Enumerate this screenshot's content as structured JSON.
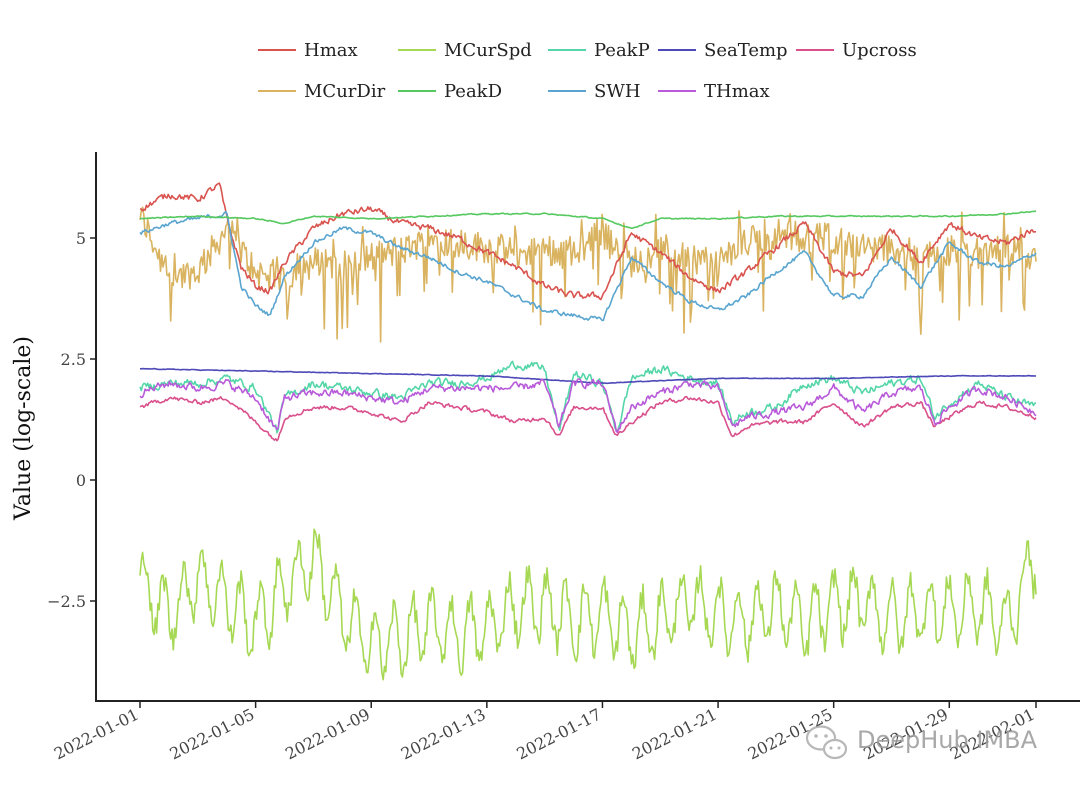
{
  "chart_data": {
    "type": "line",
    "title": "",
    "xlabel": "",
    "ylabel": "Value (log-scale)",
    "ylim": [
      -4.5,
      6.5
    ],
    "yticks": [
      -2.5,
      0,
      2.5,
      5
    ],
    "ytick_labels": [
      "−2.5",
      "0",
      "2.5",
      "5"
    ],
    "x_start": "2022-01-01",
    "x_end": "2022-02-01",
    "xticks": [
      "2022-01-01",
      "2022-01-05",
      "2022-01-09",
      "2022-01-13",
      "2022-01-17",
      "2022-01-21",
      "2022-01-25",
      "2022-01-29",
      "2022-02-01"
    ],
    "grid": false,
    "legend_position": "top",
    "series": [
      {
        "name": "Hmax",
        "color": "#d9534f",
        "anchors": [
          [
            "2022-01-01",
            5.6
          ],
          [
            "2022-01-02",
            5.9
          ],
          [
            "2022-01-03",
            5.8
          ],
          [
            "2022-01-03 18:00",
            6.1
          ],
          [
            "2022-01-04",
            5.4
          ],
          [
            "2022-01-04 12:00",
            4.4
          ],
          [
            "2022-01-05",
            4.0
          ],
          [
            "2022-01-05 12:00",
            3.9
          ],
          [
            "2022-01-06",
            4.5
          ],
          [
            "2022-01-07",
            5.2
          ],
          [
            "2022-01-08",
            5.5
          ],
          [
            "2022-01-09",
            5.6
          ],
          [
            "2022-01-10",
            5.3
          ],
          [
            "2022-01-11",
            5.2
          ],
          [
            "2022-01-12",
            5.0
          ],
          [
            "2022-01-13",
            4.7
          ],
          [
            "2022-01-14",
            4.4
          ],
          [
            "2022-01-15",
            4.0
          ],
          [
            "2022-01-16",
            3.8
          ],
          [
            "2022-01-17",
            3.8
          ],
          [
            "2022-01-18",
            5.1
          ],
          [
            "2022-01-19",
            4.7
          ],
          [
            "2022-01-20",
            4.2
          ],
          [
            "2022-01-21",
            3.9
          ],
          [
            "2022-01-22",
            4.3
          ],
          [
            "2022-01-23",
            4.8
          ],
          [
            "2022-01-24",
            5.3
          ],
          [
            "2022-01-25",
            4.3
          ],
          [
            "2022-01-26",
            4.2
          ],
          [
            "2022-01-27",
            5.2
          ],
          [
            "2022-01-28",
            4.5
          ],
          [
            "2022-01-29",
            5.3
          ],
          [
            "2022-01-30",
            5.0
          ],
          [
            "2022-01-31",
            4.9
          ],
          [
            "2022-02-01",
            5.2
          ]
        ]
      },
      {
        "name": "MCurSpd",
        "color": "#a6d854",
        "anchors": [
          [
            "2022-01-01",
            -2.1
          ],
          [
            "2022-01-02",
            -2.8
          ],
          [
            "2022-01-03",
            -2.0
          ],
          [
            "2022-01-04",
            -2.5
          ],
          [
            "2022-01-05",
            -3.0
          ],
          [
            "2022-01-06",
            -2.2
          ],
          [
            "2022-01-07",
            -1.6
          ],
          [
            "2022-01-08",
            -2.8
          ],
          [
            "2022-01-09",
            -3.4
          ],
          [
            "2022-01-10",
            -3.3
          ],
          [
            "2022-01-11",
            -3.0
          ],
          [
            "2022-01-12",
            -3.2
          ],
          [
            "2022-01-13",
            -3.1
          ],
          [
            "2022-01-14",
            -2.6
          ],
          [
            "2022-01-15",
            -2.6
          ],
          [
            "2022-01-16",
            -2.9
          ],
          [
            "2022-01-17",
            -2.8
          ],
          [
            "2022-01-18",
            -3.2
          ],
          [
            "2022-01-19",
            -2.9
          ],
          [
            "2022-01-20",
            -2.5
          ],
          [
            "2022-01-21",
            -2.8
          ],
          [
            "2022-01-22",
            -2.9
          ],
          [
            "2022-01-23",
            -2.6
          ],
          [
            "2022-01-24",
            -3.0
          ],
          [
            "2022-01-25",
            -2.6
          ],
          [
            "2022-01-26",
            -2.5
          ],
          [
            "2022-01-27",
            -2.9
          ],
          [
            "2022-01-28",
            -2.7
          ],
          [
            "2022-01-29",
            -2.7
          ],
          [
            "2022-01-30",
            -2.6
          ],
          [
            "2022-01-31",
            -3.0
          ],
          [
            "2022-02-01",
            -1.5
          ]
        ]
      },
      {
        "name": "PeakP",
        "color": "#55d6a8",
        "anchors": [
          [
            "2022-01-01",
            1.9
          ],
          [
            "2022-01-02",
            2.0
          ],
          [
            "2022-01-03",
            2.0
          ],
          [
            "2022-01-04",
            2.1
          ],
          [
            "2022-01-05",
            1.9
          ],
          [
            "2022-01-05 18:00",
            1.0
          ],
          [
            "2022-01-06",
            1.7
          ],
          [
            "2022-01-07",
            2.0
          ],
          [
            "2022-01-08",
            1.9
          ],
          [
            "2022-01-09",
            1.8
          ],
          [
            "2022-01-10",
            1.7
          ],
          [
            "2022-01-11",
            2.0
          ],
          [
            "2022-01-12",
            2.0
          ],
          [
            "2022-01-13",
            2.1
          ],
          [
            "2022-01-14",
            2.4
          ],
          [
            "2022-01-15",
            2.3
          ],
          [
            "2022-01-15 12:00",
            1.0
          ],
          [
            "2022-01-16",
            2.2
          ],
          [
            "2022-01-17",
            2.0
          ],
          [
            "2022-01-17 12:00",
            1.0
          ],
          [
            "2022-01-18",
            2.1
          ],
          [
            "2022-01-19",
            2.3
          ],
          [
            "2022-01-20",
            2.1
          ],
          [
            "2022-01-21",
            2.0
          ],
          [
            "2022-01-21 12:00",
            1.2
          ],
          [
            "2022-01-22",
            1.4
          ],
          [
            "2022-01-23",
            1.5
          ],
          [
            "2022-01-24",
            2.0
          ],
          [
            "2022-01-25",
            2.1
          ],
          [
            "2022-01-26",
            1.8
          ],
          [
            "2022-01-27",
            2.0
          ],
          [
            "2022-01-28",
            2.1
          ],
          [
            "2022-01-28 12:00",
            1.3
          ],
          [
            "2022-01-29",
            1.6
          ],
          [
            "2022-01-30",
            2.0
          ],
          [
            "2022-01-31",
            1.7
          ],
          [
            "2022-02-01",
            1.5
          ]
        ]
      },
      {
        "name": "SeaTemp",
        "color": "#4d49b8",
        "anchors": [
          [
            "2022-01-01",
            2.3
          ],
          [
            "2022-01-05",
            2.25
          ],
          [
            "2022-01-09",
            2.2
          ],
          [
            "2022-01-13",
            2.15
          ],
          [
            "2022-01-17",
            2.0
          ],
          [
            "2022-01-21",
            2.1
          ],
          [
            "2022-01-25",
            2.1
          ],
          [
            "2022-01-29",
            2.15
          ],
          [
            "2022-02-01",
            2.15
          ]
        ]
      },
      {
        "name": "Upcross",
        "color": "#d9508c",
        "anchors": [
          [
            "2022-01-01",
            1.5
          ],
          [
            "2022-01-02",
            1.7
          ],
          [
            "2022-01-03",
            1.6
          ],
          [
            "2022-01-04",
            1.7
          ],
          [
            "2022-01-05",
            1.2
          ],
          [
            "2022-01-05 18:00",
            0.8
          ],
          [
            "2022-01-06",
            1.3
          ],
          [
            "2022-01-07",
            1.5
          ],
          [
            "2022-01-08",
            1.5
          ],
          [
            "2022-01-09",
            1.4
          ],
          [
            "2022-01-10",
            1.2
          ],
          [
            "2022-01-11",
            1.6
          ],
          [
            "2022-01-12",
            1.5
          ],
          [
            "2022-01-13",
            1.4
          ],
          [
            "2022-01-14",
            1.2
          ],
          [
            "2022-01-15",
            1.3
          ],
          [
            "2022-01-15 12:00",
            0.9
          ],
          [
            "2022-01-16",
            1.5
          ],
          [
            "2022-01-17",
            1.5
          ],
          [
            "2022-01-17 12:00",
            0.9
          ],
          [
            "2022-01-18",
            1.2
          ],
          [
            "2022-01-19",
            1.6
          ],
          [
            "2022-01-20",
            1.7
          ],
          [
            "2022-01-21",
            1.6
          ],
          [
            "2022-01-21 12:00",
            0.9
          ],
          [
            "2022-01-22",
            1.1
          ],
          [
            "2022-01-23",
            1.2
          ],
          [
            "2022-01-24",
            1.2
          ],
          [
            "2022-01-25",
            1.6
          ],
          [
            "2022-01-26",
            1.1
          ],
          [
            "2022-01-27",
            1.5
          ],
          [
            "2022-01-28",
            1.6
          ],
          [
            "2022-01-28 12:00",
            1.1
          ],
          [
            "2022-01-29",
            1.3
          ],
          [
            "2022-01-30",
            1.6
          ],
          [
            "2022-01-31",
            1.5
          ],
          [
            "2022-02-01",
            1.3
          ]
        ]
      },
      {
        "name": "MCurDir",
        "color": "#d9b35f",
        "anchors": [
          [
            "2022-01-01",
            5.5
          ],
          [
            "2022-01-02",
            4.2
          ],
          [
            "2022-01-03",
            4.3
          ],
          [
            "2022-01-04",
            5.2
          ],
          [
            "2022-01-05",
            4.3
          ],
          [
            "2022-01-06",
            4.2
          ],
          [
            "2022-01-07",
            4.5
          ],
          [
            "2022-01-08",
            4.4
          ],
          [
            "2022-01-09",
            4.6
          ],
          [
            "2022-01-10",
            4.7
          ],
          [
            "2022-01-11",
            5.0
          ],
          [
            "2022-01-12",
            4.9
          ],
          [
            "2022-01-13",
            4.8
          ],
          [
            "2022-01-14",
            4.7
          ],
          [
            "2022-01-15",
            4.8
          ],
          [
            "2022-01-16",
            4.6
          ],
          [
            "2022-01-17",
            5.2
          ],
          [
            "2022-01-18",
            4.5
          ],
          [
            "2022-01-19",
            4.8
          ],
          [
            "2022-01-20",
            4.6
          ],
          [
            "2022-01-21",
            4.5
          ],
          [
            "2022-01-22",
            4.9
          ],
          [
            "2022-01-23",
            5.1
          ],
          [
            "2022-01-24",
            5.0
          ],
          [
            "2022-01-25",
            5.0
          ],
          [
            "2022-01-26",
            4.8
          ],
          [
            "2022-01-27",
            4.8
          ],
          [
            "2022-01-28",
            4.6
          ],
          [
            "2022-01-29",
            4.8
          ],
          [
            "2022-01-30",
            4.7
          ],
          [
            "2022-01-31",
            4.8
          ],
          [
            "2022-02-01",
            4.5
          ]
        ]
      },
      {
        "name": "PeakD",
        "color": "#55c95f",
        "anchors": [
          [
            "2022-01-01",
            5.4
          ],
          [
            "2022-01-03",
            5.45
          ],
          [
            "2022-01-05",
            5.4
          ],
          [
            "2022-01-06",
            5.3
          ],
          [
            "2022-01-07",
            5.45
          ],
          [
            "2022-01-09",
            5.4
          ],
          [
            "2022-01-11",
            5.45
          ],
          [
            "2022-01-13",
            5.5
          ],
          [
            "2022-01-15",
            5.5
          ],
          [
            "2022-01-17",
            5.4
          ],
          [
            "2022-01-18",
            5.2
          ],
          [
            "2022-01-19",
            5.4
          ],
          [
            "2022-01-21",
            5.4
          ],
          [
            "2022-01-23",
            5.45
          ],
          [
            "2022-01-25",
            5.45
          ],
          [
            "2022-01-27",
            5.45
          ],
          [
            "2022-01-29",
            5.45
          ],
          [
            "2022-01-31",
            5.5
          ],
          [
            "2022-02-01",
            5.55
          ]
        ]
      },
      {
        "name": "SWH",
        "color": "#5aa5cf",
        "anchors": [
          [
            "2022-01-01",
            5.1
          ],
          [
            "2022-01-02",
            5.3
          ],
          [
            "2022-01-03",
            5.4
          ],
          [
            "2022-01-04",
            5.5
          ],
          [
            "2022-01-04 12:00",
            4.0
          ],
          [
            "2022-01-05",
            3.6
          ],
          [
            "2022-01-05 12:00",
            3.4
          ],
          [
            "2022-01-06",
            4.2
          ],
          [
            "2022-01-07",
            4.9
          ],
          [
            "2022-01-08",
            5.2
          ],
          [
            "2022-01-09",
            5.1
          ],
          [
            "2022-01-10",
            4.8
          ],
          [
            "2022-01-11",
            4.6
          ],
          [
            "2022-01-12",
            4.3
          ],
          [
            "2022-01-13",
            4.1
          ],
          [
            "2022-01-14",
            3.8
          ],
          [
            "2022-01-15",
            3.5
          ],
          [
            "2022-01-16",
            3.4
          ],
          [
            "2022-01-17",
            3.3
          ],
          [
            "2022-01-18",
            4.6
          ],
          [
            "2022-01-19",
            4.1
          ],
          [
            "2022-01-20",
            3.7
          ],
          [
            "2022-01-21",
            3.5
          ],
          [
            "2022-01-22",
            3.8
          ],
          [
            "2022-01-23",
            4.3
          ],
          [
            "2022-01-24",
            4.7
          ],
          [
            "2022-01-25",
            3.8
          ],
          [
            "2022-01-26",
            3.8
          ],
          [
            "2022-01-27",
            4.6
          ],
          [
            "2022-01-28",
            4.0
          ],
          [
            "2022-01-29",
            4.9
          ],
          [
            "2022-01-30",
            4.5
          ],
          [
            "2022-01-31",
            4.4
          ],
          [
            "2022-02-01",
            4.7
          ]
        ]
      },
      {
        "name": "THmax",
        "color": "#b85ad9",
        "anchors": [
          [
            "2022-01-01",
            1.8
          ],
          [
            "2022-01-02",
            2.0
          ],
          [
            "2022-01-03",
            1.9
          ],
          [
            "2022-01-04",
            2.0
          ],
          [
            "2022-01-05",
            1.7
          ],
          [
            "2022-01-05 18:00",
            1.0
          ],
          [
            "2022-01-06",
            1.7
          ],
          [
            "2022-01-07",
            1.8
          ],
          [
            "2022-01-08",
            1.8
          ],
          [
            "2022-01-09",
            1.7
          ],
          [
            "2022-01-10",
            1.6
          ],
          [
            "2022-01-11",
            1.9
          ],
          [
            "2022-01-12",
            1.9
          ],
          [
            "2022-01-13",
            1.9
          ],
          [
            "2022-01-14",
            1.9
          ],
          [
            "2022-01-15",
            2.0
          ],
          [
            "2022-01-15 12:00",
            1.1
          ],
          [
            "2022-01-16",
            2.0
          ],
          [
            "2022-01-17",
            2.0
          ],
          [
            "2022-01-17 12:00",
            1.0
          ],
          [
            "2022-01-18",
            1.5
          ],
          [
            "2022-01-19",
            1.8
          ],
          [
            "2022-01-20",
            2.0
          ],
          [
            "2022-01-21",
            1.9
          ],
          [
            "2022-01-21 12:00",
            1.1
          ],
          [
            "2022-01-22",
            1.3
          ],
          [
            "2022-01-23",
            1.4
          ],
          [
            "2022-01-24",
            1.5
          ],
          [
            "2022-01-25",
            1.9
          ],
          [
            "2022-01-26",
            1.4
          ],
          [
            "2022-01-27",
            1.8
          ],
          [
            "2022-01-28",
            1.9
          ],
          [
            "2022-01-28 12:00",
            1.2
          ],
          [
            "2022-01-29",
            1.5
          ],
          [
            "2022-01-30",
            1.9
          ],
          [
            "2022-01-31",
            1.7
          ],
          [
            "2022-02-01",
            1.4
          ]
        ]
      }
    ]
  },
  "watermark": {
    "text": "DeepHub IMBA",
    "icon": "wechat-icon"
  }
}
